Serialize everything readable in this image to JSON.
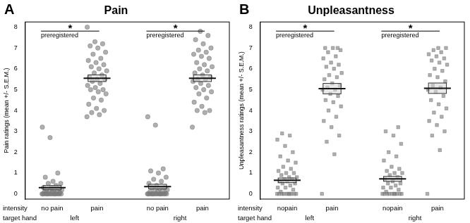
{
  "chart_data": [
    {
      "type": "scatter",
      "panel": "A",
      "title": "Pain",
      "y_label": "Pain ratings (mean +/- S.E.M.)",
      "x_row_labels": [
        "intensity",
        "target hand"
      ],
      "categories": [
        "no pain",
        "pain",
        "no pain",
        "pain"
      ],
      "groups": [
        "left",
        "right"
      ],
      "ylim": [
        -0.25,
        8.25
      ],
      "yticks": [
        0,
        1,
        2,
        3,
        4,
        5,
        6,
        7,
        8
      ],
      "grid": false,
      "marker": "circle",
      "color": "#7a7a7a",
      "points": [
        [
          0,
          0,
          0,
          0,
          0,
          0,
          0,
          0,
          0,
          0,
          0,
          0,
          0,
          0,
          0,
          0,
          0.05,
          0.1,
          0.1,
          0.1,
          0.15,
          0.2,
          0.2,
          0.2,
          0.25,
          0.3,
          0.3,
          0.4,
          0.5,
          0.5,
          0.6,
          0.8,
          1.0,
          2.7,
          3.2
        ],
        [
          3.7,
          3.8,
          3.9,
          4.0,
          4.1,
          4.3,
          4.5,
          4.6,
          4.8,
          4.9,
          5.0,
          5.0,
          5.1,
          5.2,
          5.3,
          5.4,
          5.5,
          5.5,
          5.6,
          5.7,
          5.8,
          5.9,
          6.0,
          6.1,
          6.2,
          6.3,
          6.4,
          6.5,
          6.7,
          6.8,
          7.0,
          7.1,
          7.2,
          7.3,
          8.0
        ],
        [
          0,
          0,
          0,
          0,
          0,
          0,
          0,
          0,
          0,
          0,
          0,
          0,
          0,
          0,
          0,
          0,
          0.05,
          0.1,
          0.1,
          0.15,
          0.2,
          0.2,
          0.25,
          0.3,
          0.3,
          0.4,
          0.5,
          0.6,
          0.7,
          0.8,
          1.0,
          1.1,
          1.2,
          3.3,
          3.7
        ],
        [
          3.2,
          3.9,
          4.0,
          4.0,
          4.2,
          4.4,
          4.6,
          4.8,
          4.9,
          5.0,
          5.1,
          5.2,
          5.3,
          5.4,
          5.5,
          5.5,
          5.6,
          5.7,
          5.8,
          5.9,
          6.0,
          6.1,
          6.2,
          6.3,
          6.5,
          6.6,
          6.7,
          6.8,
          6.9,
          7.0,
          7.2,
          7.4,
          7.6,
          7.8
        ]
      ],
      "means": [
        0.3,
        5.55,
        0.35,
        5.55
      ],
      "sem": [
        0.1,
        0.16,
        0.11,
        0.16
      ],
      "annotations": [
        {
          "label": "*",
          "text": "preregistered"
        },
        {
          "label": "*",
          "text": "preregistered"
        }
      ]
    },
    {
      "type": "scatter",
      "panel": "B",
      "title": "Unpleasantness",
      "y_label": "Unpleasantness ratings (mean +/- S.E.M.)",
      "x_row_labels": [
        "intensity",
        "target hand"
      ],
      "categories": [
        "nopain",
        "pain",
        "nopain",
        "pain"
      ],
      "groups": [
        "left",
        "right"
      ],
      "ylim": [
        -0.25,
        8.25
      ],
      "yticks": [
        0,
        1,
        2,
        3,
        4,
        5,
        6,
        7,
        8
      ],
      "grid": false,
      "marker": "square",
      "color": "#7a7a7a",
      "points": [
        [
          0,
          0,
          0,
          0,
          0,
          0,
          0,
          0,
          0,
          0,
          0.1,
          0.2,
          0.3,
          0.3,
          0.4,
          0.5,
          0.5,
          0.6,
          0.6,
          0.7,
          0.7,
          0.8,
          0.8,
          0.9,
          1.0,
          1.0,
          1.1,
          1.2,
          1.3,
          1.5,
          1.6,
          1.8,
          2.0,
          2.3,
          2.6,
          2.8,
          2.9
        ],
        [
          0,
          1.9,
          2.5,
          2.8,
          3.2,
          3.5,
          3.7,
          4.0,
          4.2,
          4.4,
          4.5,
          4.7,
          4.8,
          5.0,
          5.0,
          5.1,
          5.2,
          5.3,
          5.5,
          5.6,
          5.7,
          5.8,
          6.0,
          6.1,
          6.2,
          6.3,
          6.5,
          6.6,
          6.8,
          6.9,
          7.0,
          7.0,
          7.0
        ],
        [
          0,
          0,
          0,
          0,
          0,
          0,
          0,
          0,
          0,
          0,
          0.1,
          0.2,
          0.3,
          0.3,
          0.4,
          0.5,
          0.5,
          0.6,
          0.7,
          0.8,
          0.9,
          1.0,
          1.0,
          1.1,
          1.2,
          1.3,
          1.6,
          1.8,
          2.0,
          2.4,
          2.8,
          3.0,
          3.2
        ],
        [
          0,
          2.1,
          2.8,
          3.0,
          3.3,
          3.5,
          3.7,
          3.9,
          4.1,
          4.3,
          4.5,
          4.7,
          4.9,
          5.0,
          5.1,
          5.2,
          5.4,
          5.6,
          5.7,
          5.9,
          6.0,
          6.2,
          6.3,
          6.4,
          6.5,
          6.6,
          6.7,
          6.8,
          6.9,
          7.0,
          7.0
        ]
      ],
      "means": [
        0.65,
        5.05,
        0.72,
        5.07
      ],
      "sem": [
        0.11,
        0.25,
        0.12,
        0.25
      ],
      "annotations": [
        {
          "label": "*",
          "text": "preregistered"
        },
        {
          "label": "*",
          "text": "preregistered"
        }
      ]
    }
  ]
}
